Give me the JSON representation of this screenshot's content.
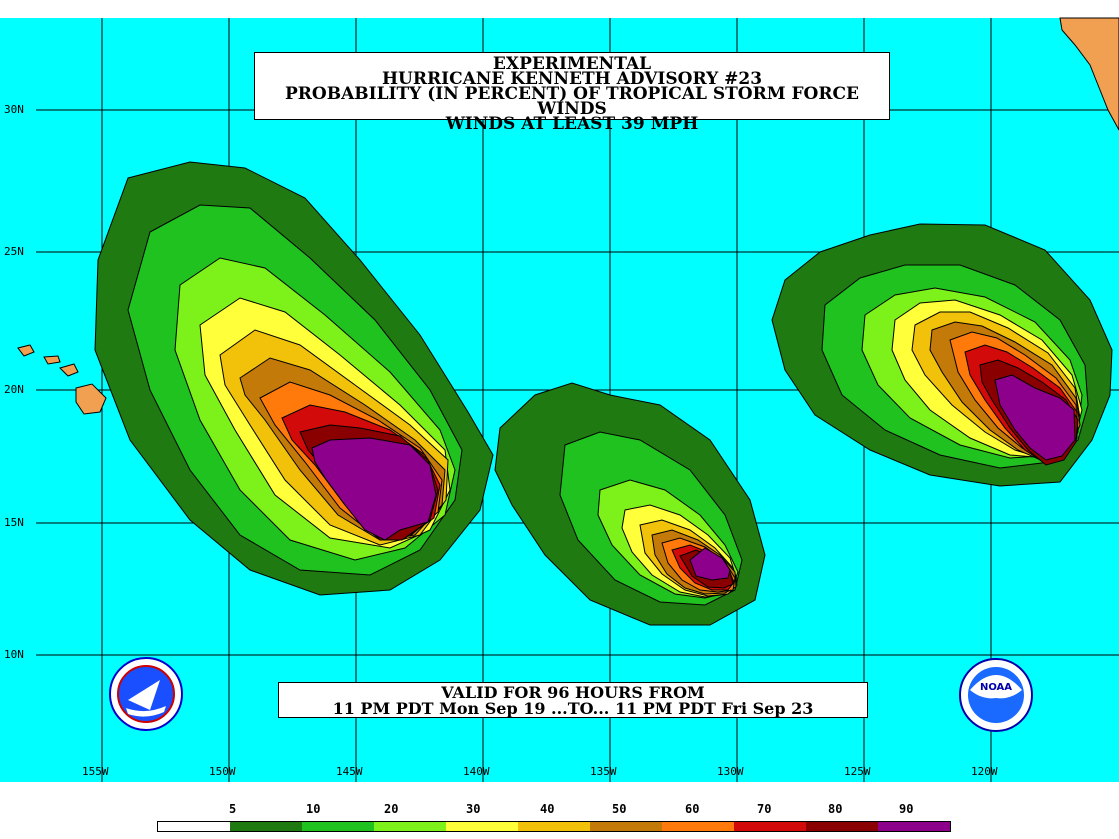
{
  "title": {
    "line1": "EXPERIMENTAL",
    "line2": "HURRICANE KENNETH ADVISORY #23",
    "line3": "PROBABILITY (IN PERCENT) OF TROPICAL STORM FORCE WINDS",
    "line4": "WINDS AT LEAST 39 MPH"
  },
  "valid": {
    "line1": "VALID FOR 96 HOURS FROM",
    "line2": "11 PM PDT Mon Sep 19 ...TO... 11 PM PDT Fri Sep 23"
  },
  "lat_labels": [
    "30N",
    "25N",
    "20N",
    "15N",
    "10N"
  ],
  "lon_labels": [
    "155W",
    "150W",
    "145W",
    "140W",
    "135W",
    "130W",
    "125W",
    "120W"
  ],
  "legend": {
    "labels": [
      "5",
      "10",
      "20",
      "30",
      "40",
      "50",
      "60",
      "70",
      "80",
      "90"
    ],
    "colors": [
      "#ffffff",
      "#1f7a12",
      "#1fc21f",
      "#7cf21a",
      "#ffff3a",
      "#f2c20a",
      "#c47a08",
      "#ff7a0a",
      "#d20a0a",
      "#8a0000",
      "#8c008c"
    ]
  },
  "colors": {
    "ocean": "#00ffff",
    "land": "#f0a050",
    "grid": "#000000"
  },
  "logos": {
    "nws": "NATIONAL WEATHER SERVICE",
    "noaa": "NOAA"
  }
}
